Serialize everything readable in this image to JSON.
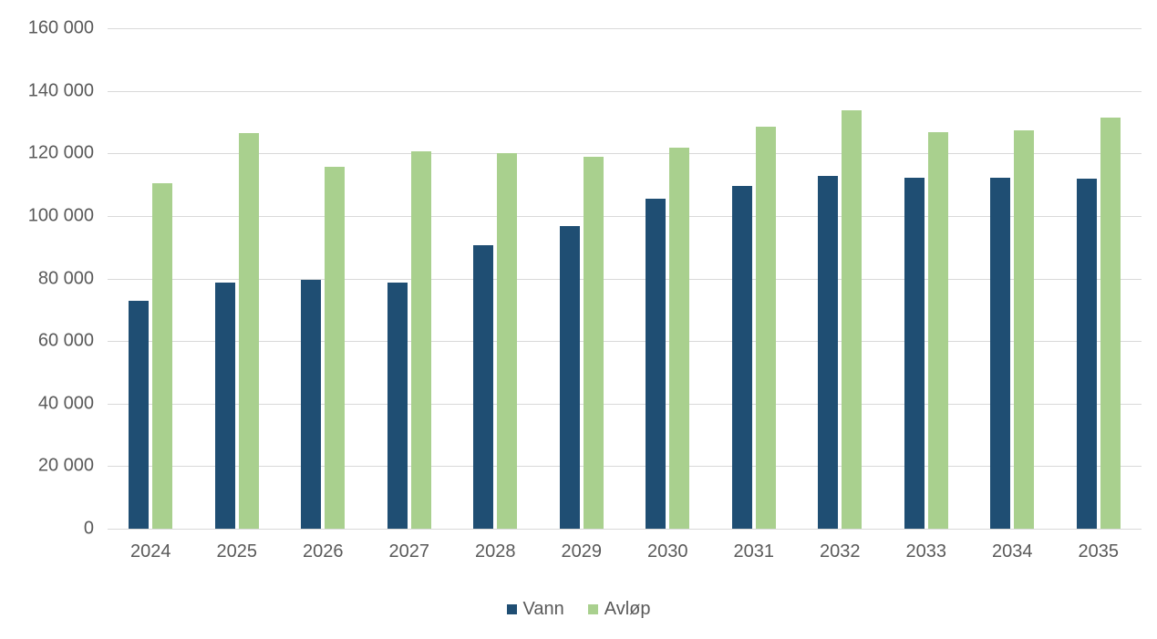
{
  "chart_data": {
    "type": "bar",
    "title": "",
    "categories": [
      "2024",
      "2025",
      "2026",
      "2027",
      "2028",
      "2029",
      "2030",
      "2031",
      "2032",
      "2033",
      "2034",
      "2035"
    ],
    "series": [
      {
        "name": "Vann",
        "color": "#1F4E73",
        "values": [
          73000,
          78700,
          79500,
          78700,
          90600,
          96900,
          105400,
          109600,
          112900,
          112100,
          112100,
          111800
        ]
      },
      {
        "name": "Avløp",
        "color": "#A9D08E",
        "values": [
          110600,
          126500,
          115700,
          120700,
          120100,
          118800,
          121800,
          128400,
          133900,
          126900,
          127400,
          131500
        ]
      }
    ],
    "ylim": [
      0,
      160000
    ],
    "y_tick_step": 20000,
    "y_tick_labels": [
      "0",
      "20 000",
      "40 000",
      "60 000",
      "80 000",
      "100 000",
      "120 000",
      "140 000",
      "160 000"
    ],
    "grid": "horizontal",
    "legend_position": "bottom",
    "axis_text_color": "#595959",
    "gridline_color": "#D9D9D9",
    "background_color": "#FFFFFF"
  }
}
